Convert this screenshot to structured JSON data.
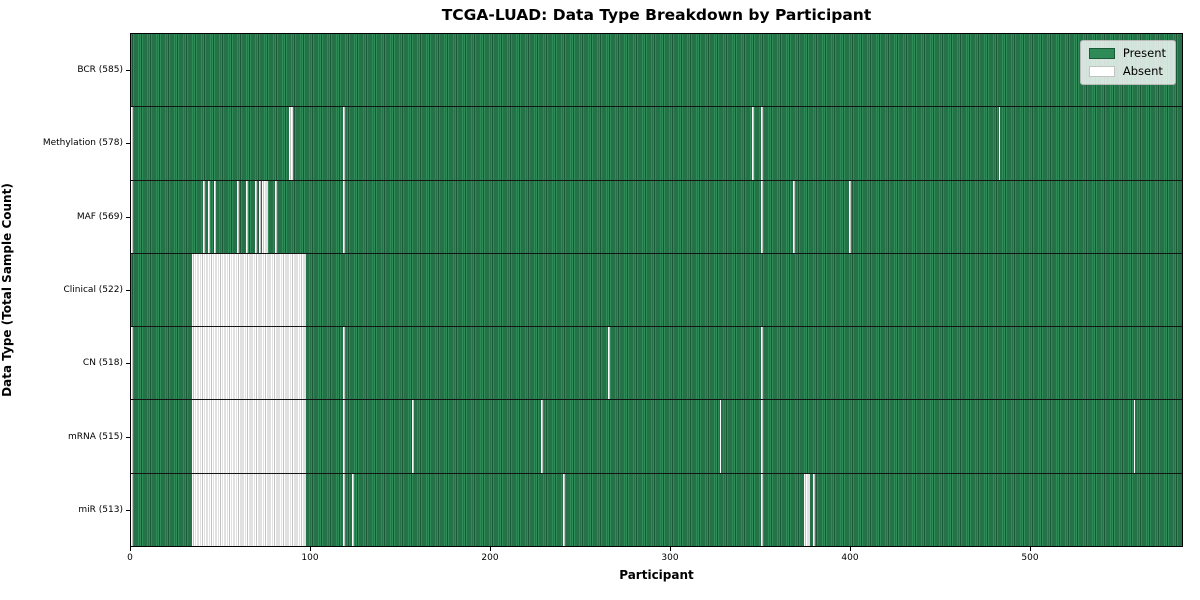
{
  "title": "TCGA-LUAD: Data Type Breakdown by Participant",
  "chart_data": {
    "type": "heatmap",
    "title": "TCGA-LUAD: Data Type Breakdown by Participant",
    "xlabel": "Participant",
    "ylabel": "Data Type (Total Sample Count)",
    "x_ticks": [
      0,
      100,
      200,
      300,
      400,
      500
    ],
    "xlim": [
      0,
      585
    ],
    "n_participants": 585,
    "grid": "off",
    "legend": {
      "position": "upper right",
      "entries": [
        {
          "label": "Present",
          "color": "#2e8b57"
        },
        {
          "label": "Absent",
          "color": "#ffffff"
        }
      ]
    },
    "colors": {
      "present_fill": "#2e8b57",
      "present_edge": "#1c5837",
      "absent_fill": "#ffffff",
      "absent_edge": "#c3c3c3"
    },
    "rows": [
      {
        "label": "BCR (585)",
        "data_type": "BCR",
        "present_count": 585,
        "absent_ranges": []
      },
      {
        "label": "Methylation (578)",
        "data_type": "Methylation",
        "present_count": 578,
        "absent_ranges": [
          [
            0,
            0
          ],
          [
            88,
            89
          ],
          [
            118,
            118
          ],
          [
            345,
            345
          ],
          [
            350,
            350
          ],
          [
            482,
            482
          ]
        ]
      },
      {
        "label": "MAF (569)",
        "data_type": "MAF",
        "present_count": 569,
        "absent_ranges": [
          [
            0,
            0
          ],
          [
            40,
            40
          ],
          [
            43,
            43
          ],
          [
            46,
            46
          ],
          [
            59,
            59
          ],
          [
            64,
            64
          ],
          [
            69,
            69
          ],
          [
            71,
            71
          ],
          [
            73,
            75
          ],
          [
            80,
            80
          ],
          [
            118,
            118
          ],
          [
            350,
            350
          ],
          [
            368,
            368
          ],
          [
            399,
            399
          ]
        ]
      },
      {
        "label": "Clinical (522)",
        "data_type": "Clinical",
        "present_count": 522,
        "absent_ranges": [
          [
            34,
            96
          ]
        ]
      },
      {
        "label": "CN (518)",
        "data_type": "CN",
        "present_count": 518,
        "absent_ranges": [
          [
            0,
            0
          ],
          [
            34,
            96
          ],
          [
            118,
            118
          ],
          [
            265,
            265
          ],
          [
            350,
            350
          ]
        ]
      },
      {
        "label": "mRNA (515)",
        "data_type": "mRNA",
        "present_count": 515,
        "absent_ranges": [
          [
            0,
            0
          ],
          [
            34,
            96
          ],
          [
            118,
            118
          ],
          [
            156,
            156
          ],
          [
            228,
            228
          ],
          [
            327,
            327
          ],
          [
            350,
            350
          ],
          [
            557,
            557
          ]
        ]
      },
      {
        "label": "miR (513)",
        "data_type": "miR",
        "present_count": 513,
        "absent_ranges": [
          [
            0,
            0
          ],
          [
            34,
            96
          ],
          [
            118,
            118
          ],
          [
            123,
            123
          ],
          [
            240,
            240
          ],
          [
            350,
            350
          ],
          [
            374,
            376
          ],
          [
            379,
            379
          ]
        ]
      }
    ]
  }
}
